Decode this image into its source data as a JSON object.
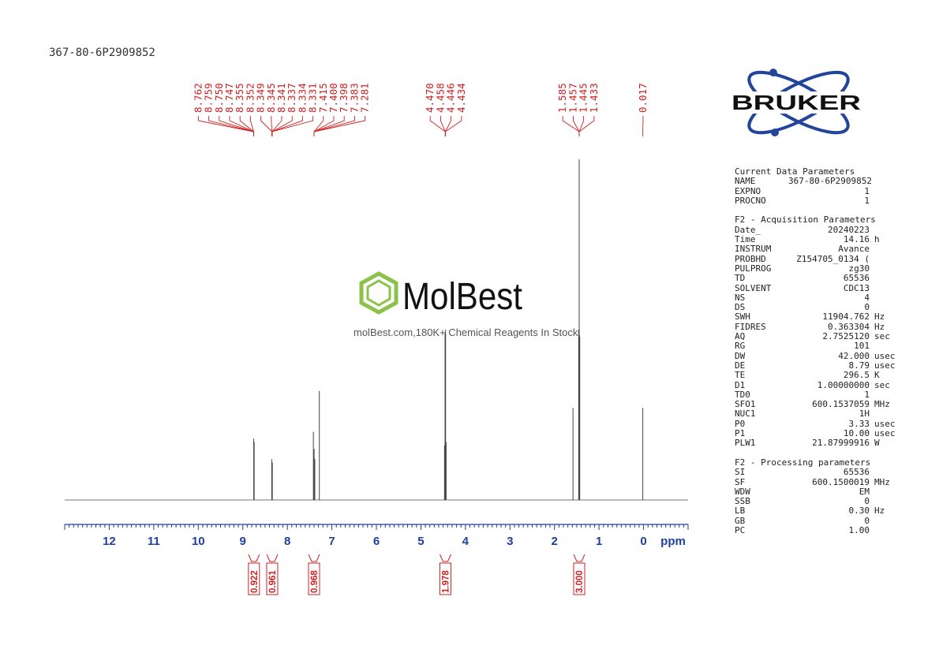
{
  "sample_id": "367-80-6P2909852",
  "watermark": {
    "brand": "MolBest",
    "tagline": "molBest.com,180K+ Chemical Reagents In Stock."
  },
  "logo": {
    "text": "BRUKER"
  },
  "colors": {
    "peak_labels": "#cc2222",
    "axis": "#1e3fa0",
    "spectrum": "#444444",
    "logo_blue": "#22449a",
    "watermark_green": "#8bc34a"
  },
  "chart_data": {
    "type": "line",
    "xlabel": "ppm",
    "xlim": [
      13,
      -1
    ],
    "x_ticks": [
      "12",
      "11",
      "10",
      "9",
      "8",
      "7",
      "6",
      "5",
      "4",
      "3",
      "2",
      "1",
      "0"
    ],
    "peaks": [
      {
        "ppm": 8.755,
        "height": 0.18
      },
      {
        "ppm": 8.745,
        "height": 0.17
      },
      {
        "ppm": 8.35,
        "height": 0.12
      },
      {
        "ppm": 8.337,
        "height": 0.11
      },
      {
        "ppm": 7.415,
        "height": 0.2
      },
      {
        "ppm": 7.398,
        "height": 0.15
      },
      {
        "ppm": 7.383,
        "height": 0.12
      },
      {
        "ppm": 7.281,
        "height": 0.32
      },
      {
        "ppm": 4.47,
        "height": 0.16
      },
      {
        "ppm": 4.458,
        "height": 0.49
      },
      {
        "ppm": 4.446,
        "height": 0.5
      },
      {
        "ppm": 4.434,
        "height": 0.17
      },
      {
        "ppm": 1.585,
        "height": 0.27
      },
      {
        "ppm": 1.457,
        "height": 0.5
      },
      {
        "ppm": 1.445,
        "height": 1.0
      },
      {
        "ppm": 1.433,
        "height": 0.48
      },
      {
        "ppm": 0.017,
        "height": 0.27
      }
    ],
    "peak_label_groups": [
      {
        "labels": [
          "8.762",
          "8.759",
          "8.750",
          "8.747",
          "8.355",
          "8.352",
          "8.349",
          "8.345",
          "8.341",
          "8.337",
          "8.334",
          "8.331",
          "7.415",
          "7.400",
          "7.398",
          "7.383",
          "7.281"
        ],
        "join_ppms": [
          8.755,
          8.343,
          7.4
        ]
      },
      {
        "labels": [
          "4.470",
          "4.458",
          "4.446",
          "4.434"
        ],
        "join_ppms": [
          4.452
        ]
      },
      {
        "labels": [
          "1.585",
          "1.457",
          "1.445",
          "1.433"
        ],
        "join_ppms": [
          1.445
        ]
      },
      {
        "labels": [
          "0.017"
        ],
        "join_ppms": [
          0.017
        ]
      }
    ],
    "integrals": [
      {
        "ppm": 8.75,
        "value": "0.922"
      },
      {
        "ppm": 8.34,
        "value": "0.961"
      },
      {
        "ppm": 7.4,
        "value": "0.968"
      },
      {
        "ppm": 4.45,
        "value": "1.978"
      },
      {
        "ppm": 1.445,
        "value": "3.000"
      }
    ]
  },
  "parameters": {
    "current": {
      "title": "Current Data Parameters",
      "rows": [
        {
          "k": "NAME",
          "v": "367-80-6P2909852",
          "u": ""
        },
        {
          "k": "EXPNO",
          "v": "1",
          "u": ""
        },
        {
          "k": "PROCNO",
          "v": "1",
          "u": ""
        }
      ]
    },
    "acquisition": {
      "title": "F2 - Acquisition Parameters",
      "rows": [
        {
          "k": "Date_",
          "v": "20240223",
          "u": ""
        },
        {
          "k": "Time",
          "v": "14.16",
          "u": "h"
        },
        {
          "k": "INSTRUM",
          "v": "Avance",
          "u": ""
        },
        {
          "k": "PROBHD",
          "v": "Z154705_0134 (",
          "u": ""
        },
        {
          "k": "PULPROG",
          "v": "zg30",
          "u": ""
        },
        {
          "k": "TD",
          "v": "65536",
          "u": ""
        },
        {
          "k": "SOLVENT",
          "v": "CDC13",
          "u": ""
        },
        {
          "k": "NS",
          "v": "4",
          "u": ""
        },
        {
          "k": "DS",
          "v": "0",
          "u": ""
        },
        {
          "k": "SWH",
          "v": "11904.762",
          "u": "Hz"
        },
        {
          "k": "FIDRES",
          "v": "0.363304",
          "u": "Hz"
        },
        {
          "k": "AQ",
          "v": "2.7525120",
          "u": "sec"
        },
        {
          "k": "RG",
          "v": "101",
          "u": ""
        },
        {
          "k": "DW",
          "v": "42.000",
          "u": "usec"
        },
        {
          "k": "DE",
          "v": "8.79",
          "u": "usec"
        },
        {
          "k": "TE",
          "v": "296.5",
          "u": "K"
        },
        {
          "k": "D1",
          "v": "1.00000000",
          "u": "sec"
        },
        {
          "k": "TD0",
          "v": "1",
          "u": ""
        },
        {
          "k": "SFO1",
          "v": "600.1537059",
          "u": "MHz"
        },
        {
          "k": "NUC1",
          "v": "1H",
          "u": ""
        },
        {
          "k": "P0",
          "v": "3.33",
          "u": "usec"
        },
        {
          "k": "P1",
          "v": "10.00",
          "u": "usec"
        },
        {
          "k": "PLW1",
          "v": "21.87999916",
          "u": "W"
        }
      ]
    },
    "processing": {
      "title": "F2 - Processing parameters",
      "rows": [
        {
          "k": "SI",
          "v": "65536",
          "u": ""
        },
        {
          "k": "SF",
          "v": "600.1500019",
          "u": "MHz"
        },
        {
          "k": "WDW",
          "v": "EM",
          "u": ""
        },
        {
          "k": "SSB",
          "v": "0",
          "u": ""
        },
        {
          "k": "LB",
          "v": "0.30",
          "u": "Hz"
        },
        {
          "k": "GB",
          "v": "0",
          "u": ""
        },
        {
          "k": "PC",
          "v": "1.00",
          "u": ""
        }
      ]
    }
  }
}
